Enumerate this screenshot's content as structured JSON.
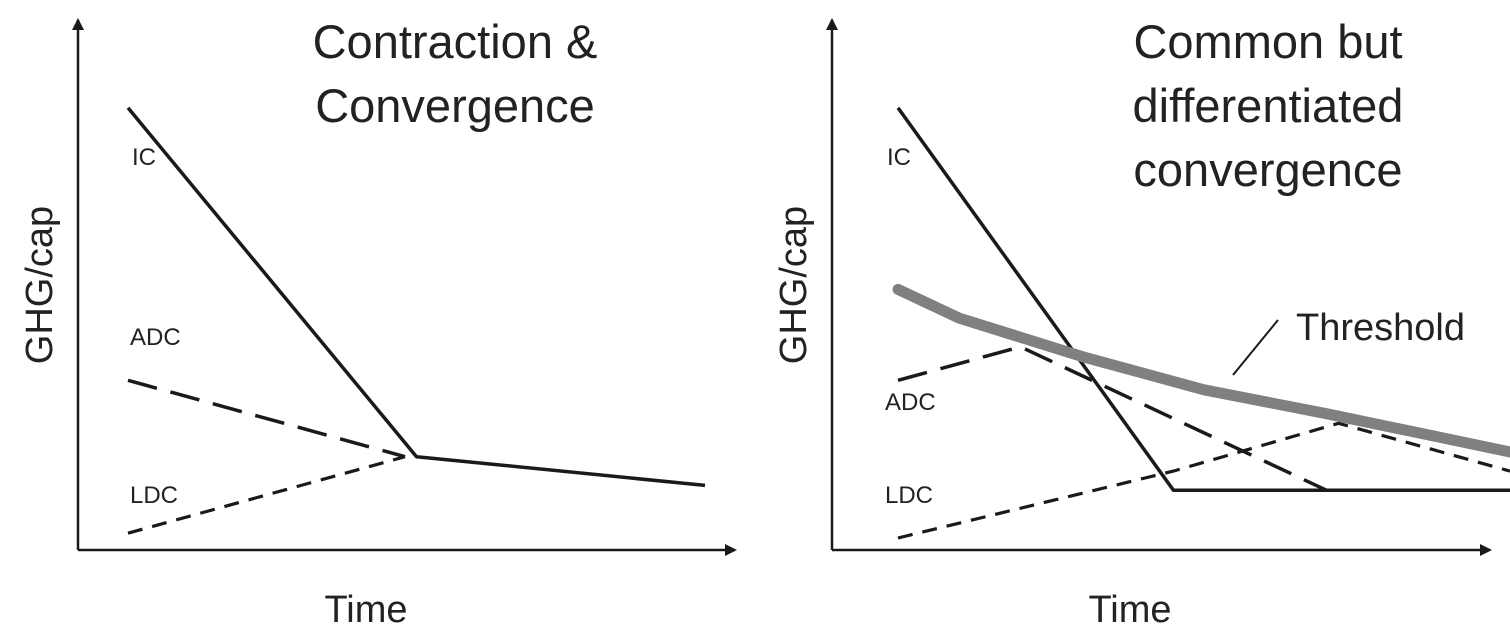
{
  "chart_data": [
    {
      "type": "line",
      "title_lines": [
        "Contraction &",
        "Convergence"
      ],
      "xlabel": "Time",
      "ylabel": "GHG/cap",
      "series": [
        {
          "name": "IC",
          "style": "solid",
          "color": "#1a1a1a",
          "points": [
            [
              0,
              90
            ],
            [
              50,
              17
            ],
            [
              100,
              11
            ]
          ]
        },
        {
          "name": "ADC",
          "style": "long-dash",
          "color": "#1a1a1a",
          "points": [
            [
              0,
              33
            ],
            [
              48,
              17
            ]
          ]
        },
        {
          "name": "LDC",
          "style": "short-dash",
          "color": "#1a1a1a",
          "points": [
            [
              0,
              1
            ],
            [
              48,
              17
            ]
          ]
        }
      ],
      "labels": [
        {
          "text": "IC",
          "series": "IC"
        },
        {
          "text": "ADC",
          "series": "ADC"
        },
        {
          "text": "LDC",
          "series": "LDC"
        }
      ]
    },
    {
      "type": "line",
      "title_lines": [
        "Common but",
        "differentiated",
        "convergence"
      ],
      "xlabel": "Time",
      "ylabel": "GHG/cap",
      "series": [
        {
          "name": "IC",
          "style": "solid",
          "color": "#1a1a1a",
          "points": [
            [
              0,
              90
            ],
            [
              45,
              10
            ],
            [
              100,
              10
            ]
          ]
        },
        {
          "name": "ADC",
          "style": "long-dash",
          "color": "#1a1a1a",
          "points": [
            [
              0,
              33
            ],
            [
              20,
              40
            ],
            [
              70,
              10
            ]
          ]
        },
        {
          "name": "LDC",
          "style": "short-dash",
          "color": "#1a1a1a",
          "points": [
            [
              0,
              0
            ],
            [
              45,
              14
            ],
            [
              72,
              24
            ],
            [
              100,
              14
            ]
          ]
        },
        {
          "name": "Threshold",
          "style": "thick",
          "color": "#808080",
          "points": [
            [
              0,
              52
            ],
            [
              10,
              46
            ],
            [
              30,
              38
            ],
            [
              50,
              31
            ],
            [
              70,
              26
            ],
            [
              85,
              22
            ],
            [
              100,
              18
            ]
          ]
        }
      ],
      "labels": [
        {
          "text": "IC",
          "series": "IC"
        },
        {
          "text": "ADC",
          "series": "ADC"
        },
        {
          "text": "LDC",
          "series": "LDC"
        },
        {
          "text": "Threshold",
          "series": "Threshold"
        }
      ],
      "colors": {
        "threshold": "#808080",
        "lines": "#1a1a1a"
      }
    }
  ]
}
